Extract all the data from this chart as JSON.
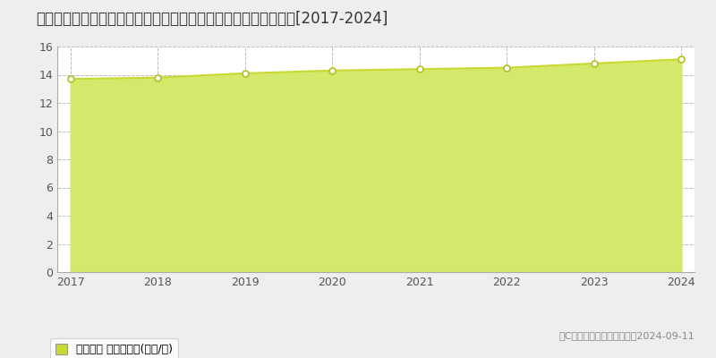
{
  "title": "新潟県新潟市北区かぶとやま１丁目７番８　地価公示　地価推移[2017-2024]",
  "years": [
    2017,
    2018,
    2019,
    2020,
    2021,
    2022,
    2023,
    2024
  ],
  "values": [
    13.7,
    13.8,
    14.1,
    14.3,
    14.4,
    14.5,
    14.8,
    15.1
  ],
  "ylim": [
    0,
    16
  ],
  "yticks": [
    0,
    2,
    4,
    6,
    8,
    10,
    12,
    14,
    16
  ],
  "line_color": "#c8d932",
  "fill_color": "#d4e96b",
  "fill_alpha": 1.0,
  "marker_color": "#ffffff",
  "marker_edge_color": "#b0c020",
  "fig_bg_color": "#eeeeee",
  "plot_bg_color": "#ffffff",
  "grid_color": "#bbbbbb",
  "legend_label": "地価公示 平均坊単価(万円/坊)",
  "copyright_text": "（C）土地価格ドットコム　2024-09-11",
  "title_fontsize": 12,
  "axis_fontsize": 9,
  "legend_fontsize": 9,
  "legend_marker_color": "#c8d932"
}
